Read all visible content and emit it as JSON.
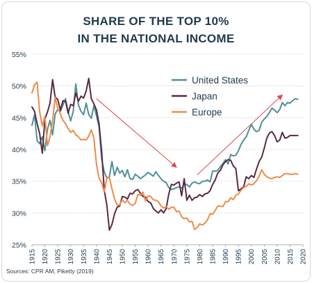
{
  "chart_data": {
    "type": "line",
    "title_line1": "SHARE OF THE TOP 10%",
    "title_line2": "IN THE NATIONAL INCOME",
    "source": "Sources: CPR AM, Piketty (2019)",
    "ylim": [
      25,
      55
    ],
    "yticks": [
      "25%",
      "30%",
      "35%",
      "40%",
      "45%",
      "50%",
      "55%"
    ],
    "ytick_values": [
      25,
      30,
      35,
      40,
      45,
      50,
      55
    ],
    "xlim": [
      1915,
      2020
    ],
    "xticks": [
      "1915",
      "1920",
      "1925",
      "1930",
      "1935",
      "1940",
      "1945",
      "1950",
      "1955",
      "1960",
      "1965",
      "1970",
      "1975",
      "1980",
      "1985",
      "1990",
      "1995",
      "2000",
      "2005",
      "2010",
      "2015",
      "2020"
    ],
    "xtick_values": [
      1915,
      1920,
      1925,
      1930,
      1935,
      1940,
      1945,
      1950,
      1955,
      1960,
      1965,
      1970,
      1975,
      1980,
      1985,
      1990,
      1995,
      2000,
      2005,
      2010,
      2015,
      2020
    ],
    "grid": true,
    "legend_position": "top-right",
    "series": [
      {
        "name": "United States",
        "color": "#4e8f98",
        "x": [
          1915,
          1916,
          1917,
          1918,
          1919,
          1920,
          1921,
          1922,
          1923,
          1924,
          1925,
          1926,
          1927,
          1928,
          1929,
          1930,
          1931,
          1932,
          1933,
          1934,
          1935,
          1936,
          1937,
          1938,
          1939,
          1940,
          1941,
          1942,
          1943,
          1944,
          1945,
          1946,
          1947,
          1948,
          1949,
          1950,
          1951,
          1952,
          1953,
          1954,
          1955,
          1956,
          1957,
          1958,
          1959,
          1960,
          1961,
          1962,
          1963,
          1964,
          1965,
          1966,
          1967,
          1968,
          1969,
          1970,
          1971,
          1972,
          1973,
          1974,
          1975,
          1976,
          1977,
          1978,
          1979,
          1980,
          1981,
          1982,
          1983,
          1984,
          1985,
          1986,
          1987,
          1988,
          1989,
          1990,
          1991,
          1992,
          1993,
          1994,
          1995,
          1996,
          1997,
          1998,
          1999,
          2000,
          2001,
          2002,
          2003,
          2004,
          2005,
          2006,
          2007,
          2008,
          2009,
          2010,
          2011,
          2012,
          2013,
          2014,
          2015,
          2016,
          2017,
          2018
        ],
        "values": [
          43.8,
          45.5,
          41.4,
          40.9,
          42.0,
          39.8,
          43.2,
          44.6,
          42.3,
          45.6,
          46.3,
          46.0,
          47.0,
          48.0,
          46.0,
          44.5,
          46.0,
          50.3,
          47.0,
          46.0,
          45.5,
          47.3,
          45.5,
          44.9,
          46.9,
          45.3,
          43.5,
          38.5,
          36.5,
          35.5,
          35.7,
          38.1,
          35.9,
          37.2,
          36.3,
          36.7,
          35.7,
          36.8,
          35.4,
          35.3,
          36.1,
          35.8,
          35.4,
          35.7,
          36.0,
          36.4,
          36.1,
          35.8,
          36.5,
          35.9,
          35.4,
          35.0,
          34.8,
          34.0,
          33.7,
          33.8,
          34.0,
          34.1,
          33.9,
          34.5,
          34.5,
          34.1,
          34.7,
          34.9,
          34.7,
          34.6,
          35.0,
          35.0,
          35.2,
          34.9,
          36.6,
          36.6,
          36.7,
          37.3,
          37.8,
          38.4,
          37.7,
          39.2,
          39.0,
          39.1,
          39.8,
          40.8,
          41.5,
          42.0,
          43.0,
          44.0,
          43.2,
          42.8,
          43.0,
          44.3,
          44.8,
          45.2,
          45.8,
          46.5,
          46.2,
          45.8,
          46.3,
          47.4,
          46.9,
          47.4,
          47.3,
          47.7,
          48.0,
          47.9
        ]
      },
      {
        "name": "Japan",
        "color": "#5a2841",
        "x": [
          1915,
          1916,
          1917,
          1918,
          1919,
          1920,
          1921,
          1922,
          1923,
          1924,
          1925,
          1926,
          1927,
          1928,
          1929,
          1930,
          1931,
          1932,
          1933,
          1934,
          1935,
          1936,
          1937,
          1938,
          1939,
          1940,
          1941,
          1942,
          1943,
          1944,
          1945,
          1946,
          1947,
          1948,
          1949,
          1950,
          1951,
          1952,
          1953,
          1954,
          1955,
          1956,
          1957,
          1958,
          1959,
          1960,
          1961,
          1962,
          1963,
          1964,
          1965,
          1966,
          1967,
          1968,
          1969,
          1970,
          1971,
          1972,
          1973,
          1974,
          1975,
          1976,
          1977,
          1978,
          1979,
          1980,
          1981,
          1982,
          1983,
          1984,
          1985,
          1986,
          1987,
          1988,
          1989,
          1990,
          1991,
          1992,
          1993,
          1994,
          1995,
          1996,
          1997,
          1998,
          1999,
          2000,
          2001,
          2002,
          2003,
          2004,
          2005,
          2006,
          2007,
          2008,
          2009,
          2010,
          2011,
          2012,
          2013,
          2014,
          2015,
          2016,
          2017,
          2018
        ],
        "values": [
          46.7,
          46.0,
          44.1,
          42.5,
          39.4,
          44.8,
          45.9,
          47.3,
          51.0,
          48.2,
          47.9,
          46.2,
          47.7,
          47.6,
          45.7,
          47.1,
          46.9,
          48.9,
          47.6,
          48.4,
          48.1,
          49.2,
          51.2,
          48.0,
          47.2,
          46.2,
          44.0,
          39.7,
          33.6,
          31.3,
          27.3,
          28.2,
          29.9,
          30.9,
          31.1,
          32.6,
          32.5,
          32.2,
          33.1,
          33.0,
          33.5,
          33.7,
          33.1,
          32.6,
          32.5,
          31.8,
          31.6,
          30.7,
          30.3,
          30.0,
          30.5,
          30.0,
          30.7,
          33.0,
          34.5,
          34.4,
          34.7,
          34.9,
          32.7,
          35.4,
          32.0,
          32.8,
          32.0,
          32.4,
          32.5,
          32.9,
          32.6,
          33.0,
          33.1,
          33.5,
          34.5,
          35.2,
          36.3,
          36.7,
          37.6,
          38.1,
          38.4,
          38.3,
          37.4,
          37.0,
          33.5,
          33.8,
          34.1,
          35.7,
          35.4,
          35.9,
          35.6,
          36.9,
          38.1,
          38.8,
          40.2,
          41.8,
          42.6,
          42.8,
          42.2,
          41.2,
          41.5,
          42.7,
          41.8,
          41.9,
          42.2,
          42.2,
          42.2,
          42.2
        ]
      },
      {
        "name": "Europe",
        "color": "#ef8a49",
        "x": [
          1915,
          1916,
          1917,
          1918,
          1919,
          1920,
          1921,
          1922,
          1923,
          1924,
          1925,
          1926,
          1927,
          1928,
          1929,
          1930,
          1931,
          1932,
          1933,
          1934,
          1935,
          1936,
          1937,
          1938,
          1939,
          1940,
          1941,
          1942,
          1943,
          1944,
          1945,
          1946,
          1947,
          1948,
          1949,
          1950,
          1951,
          1952,
          1953,
          1954,
          1955,
          1956,
          1957,
          1958,
          1959,
          1960,
          1961,
          1962,
          1963,
          1964,
          1965,
          1966,
          1967,
          1968,
          1969,
          1970,
          1971,
          1972,
          1973,
          1974,
          1975,
          1976,
          1977,
          1978,
          1979,
          1980,
          1981,
          1982,
          1983,
          1984,
          1985,
          1986,
          1987,
          1988,
          1989,
          1990,
          1991,
          1992,
          1993,
          1994,
          1995,
          1996,
          1997,
          1998,
          1999,
          2000,
          2001,
          2002,
          2003,
          2004,
          2005,
          2006,
          2007,
          2008,
          2009,
          2010,
          2011,
          2012,
          2013,
          2014,
          2015,
          2016,
          2017,
          2018
        ],
        "values": [
          48.9,
          50.2,
          50.6,
          45.9,
          43.7,
          45.2,
          40.6,
          42.0,
          44.5,
          48.2,
          46.5,
          45.6,
          44.6,
          44.1,
          43.3,
          42.7,
          43.0,
          42.3,
          42.0,
          41.5,
          41.6,
          41.5,
          42.1,
          43.1,
          41.8,
          37.6,
          35.5,
          34.8,
          33.3,
          35.5,
          35.6,
          33.8,
          32.2,
          31.2,
          31.3,
          32.1,
          31.6,
          32.0,
          31.4,
          31.2,
          31.5,
          32.9,
          32.8,
          33.3,
          31.9,
          32.7,
          32.6,
          32.1,
          32.0,
          31.8,
          31.1,
          30.8,
          31.0,
          30.6,
          30.9,
          30.9,
          30.2,
          30.3,
          29.4,
          29.1,
          29.2,
          28.6,
          28.7,
          27.4,
          27.7,
          28.3,
          28.1,
          28.4,
          28.9,
          29.9,
          29.8,
          30.4,
          31.1,
          31.1,
          31.0,
          31.8,
          31.8,
          32.4,
          32.1,
          32.8,
          33.0,
          33.6,
          34.0,
          34.2,
          34.6,
          34.4,
          34.6,
          35.1,
          35.8,
          36.8,
          36.1,
          35.7,
          35.5,
          35.4,
          35.6,
          35.7,
          35.6,
          35.9,
          36.2,
          36.2,
          36.1,
          36.1,
          36.2,
          36.1
        ]
      }
    ],
    "annotations": [
      {
        "type": "arrow",
        "color": "#e04848",
        "from": [
          1940,
          48.0
        ],
        "to": [
          1971,
          37.2
        ]
      },
      {
        "type": "arrow",
        "color": "#e04848",
        "from": [
          1979,
          36.0
        ],
        "to": [
          2012,
          48.6
        ]
      }
    ]
  }
}
